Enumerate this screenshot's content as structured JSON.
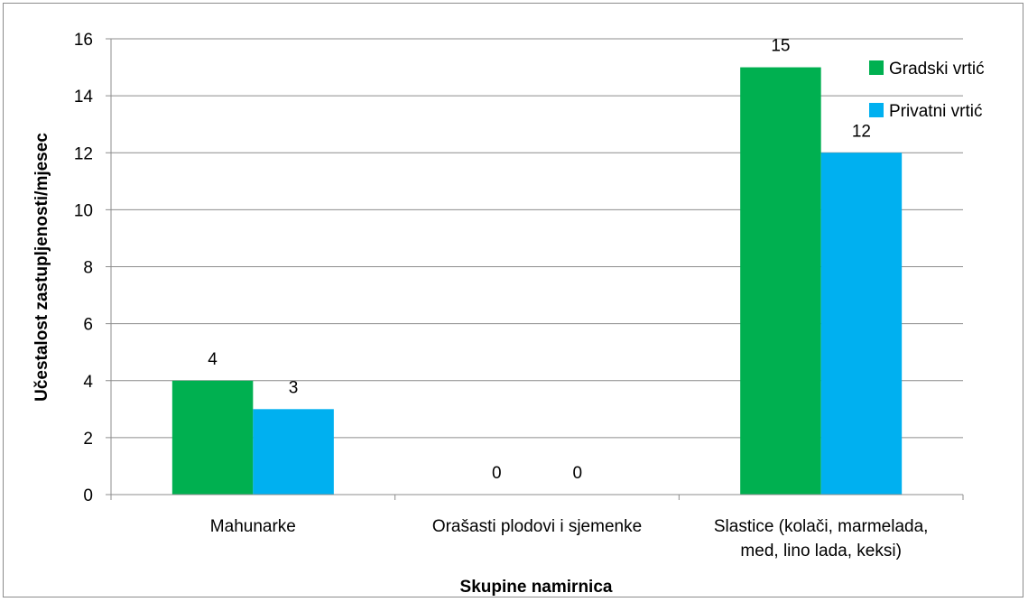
{
  "chart_data": {
    "type": "bar",
    "categories": [
      [
        "Mahunarke"
      ],
      [
        "Orašasti plodovi i sjemenke"
      ],
      [
        "Slastice (kolači, marmelada,",
        "med, lino lada, keksi)"
      ]
    ],
    "series": [
      {
        "name": "Gradski vrtić",
        "color": "#00b050",
        "values": [
          4,
          0,
          15
        ]
      },
      {
        "name": "Privatni vrtić",
        "color": "#00b0f0",
        "values": [
          3,
          0,
          12
        ]
      }
    ],
    "xlabel": "Skupine namirnica",
    "ylabel": "Učestalost zastupljenosti/mjesec",
    "ylim": [
      0,
      16
    ],
    "yticks": [
      0,
      2,
      4,
      6,
      8,
      10,
      12,
      14,
      16
    ],
    "grid": true,
    "legend_position": "top-right",
    "data_labels": true
  }
}
